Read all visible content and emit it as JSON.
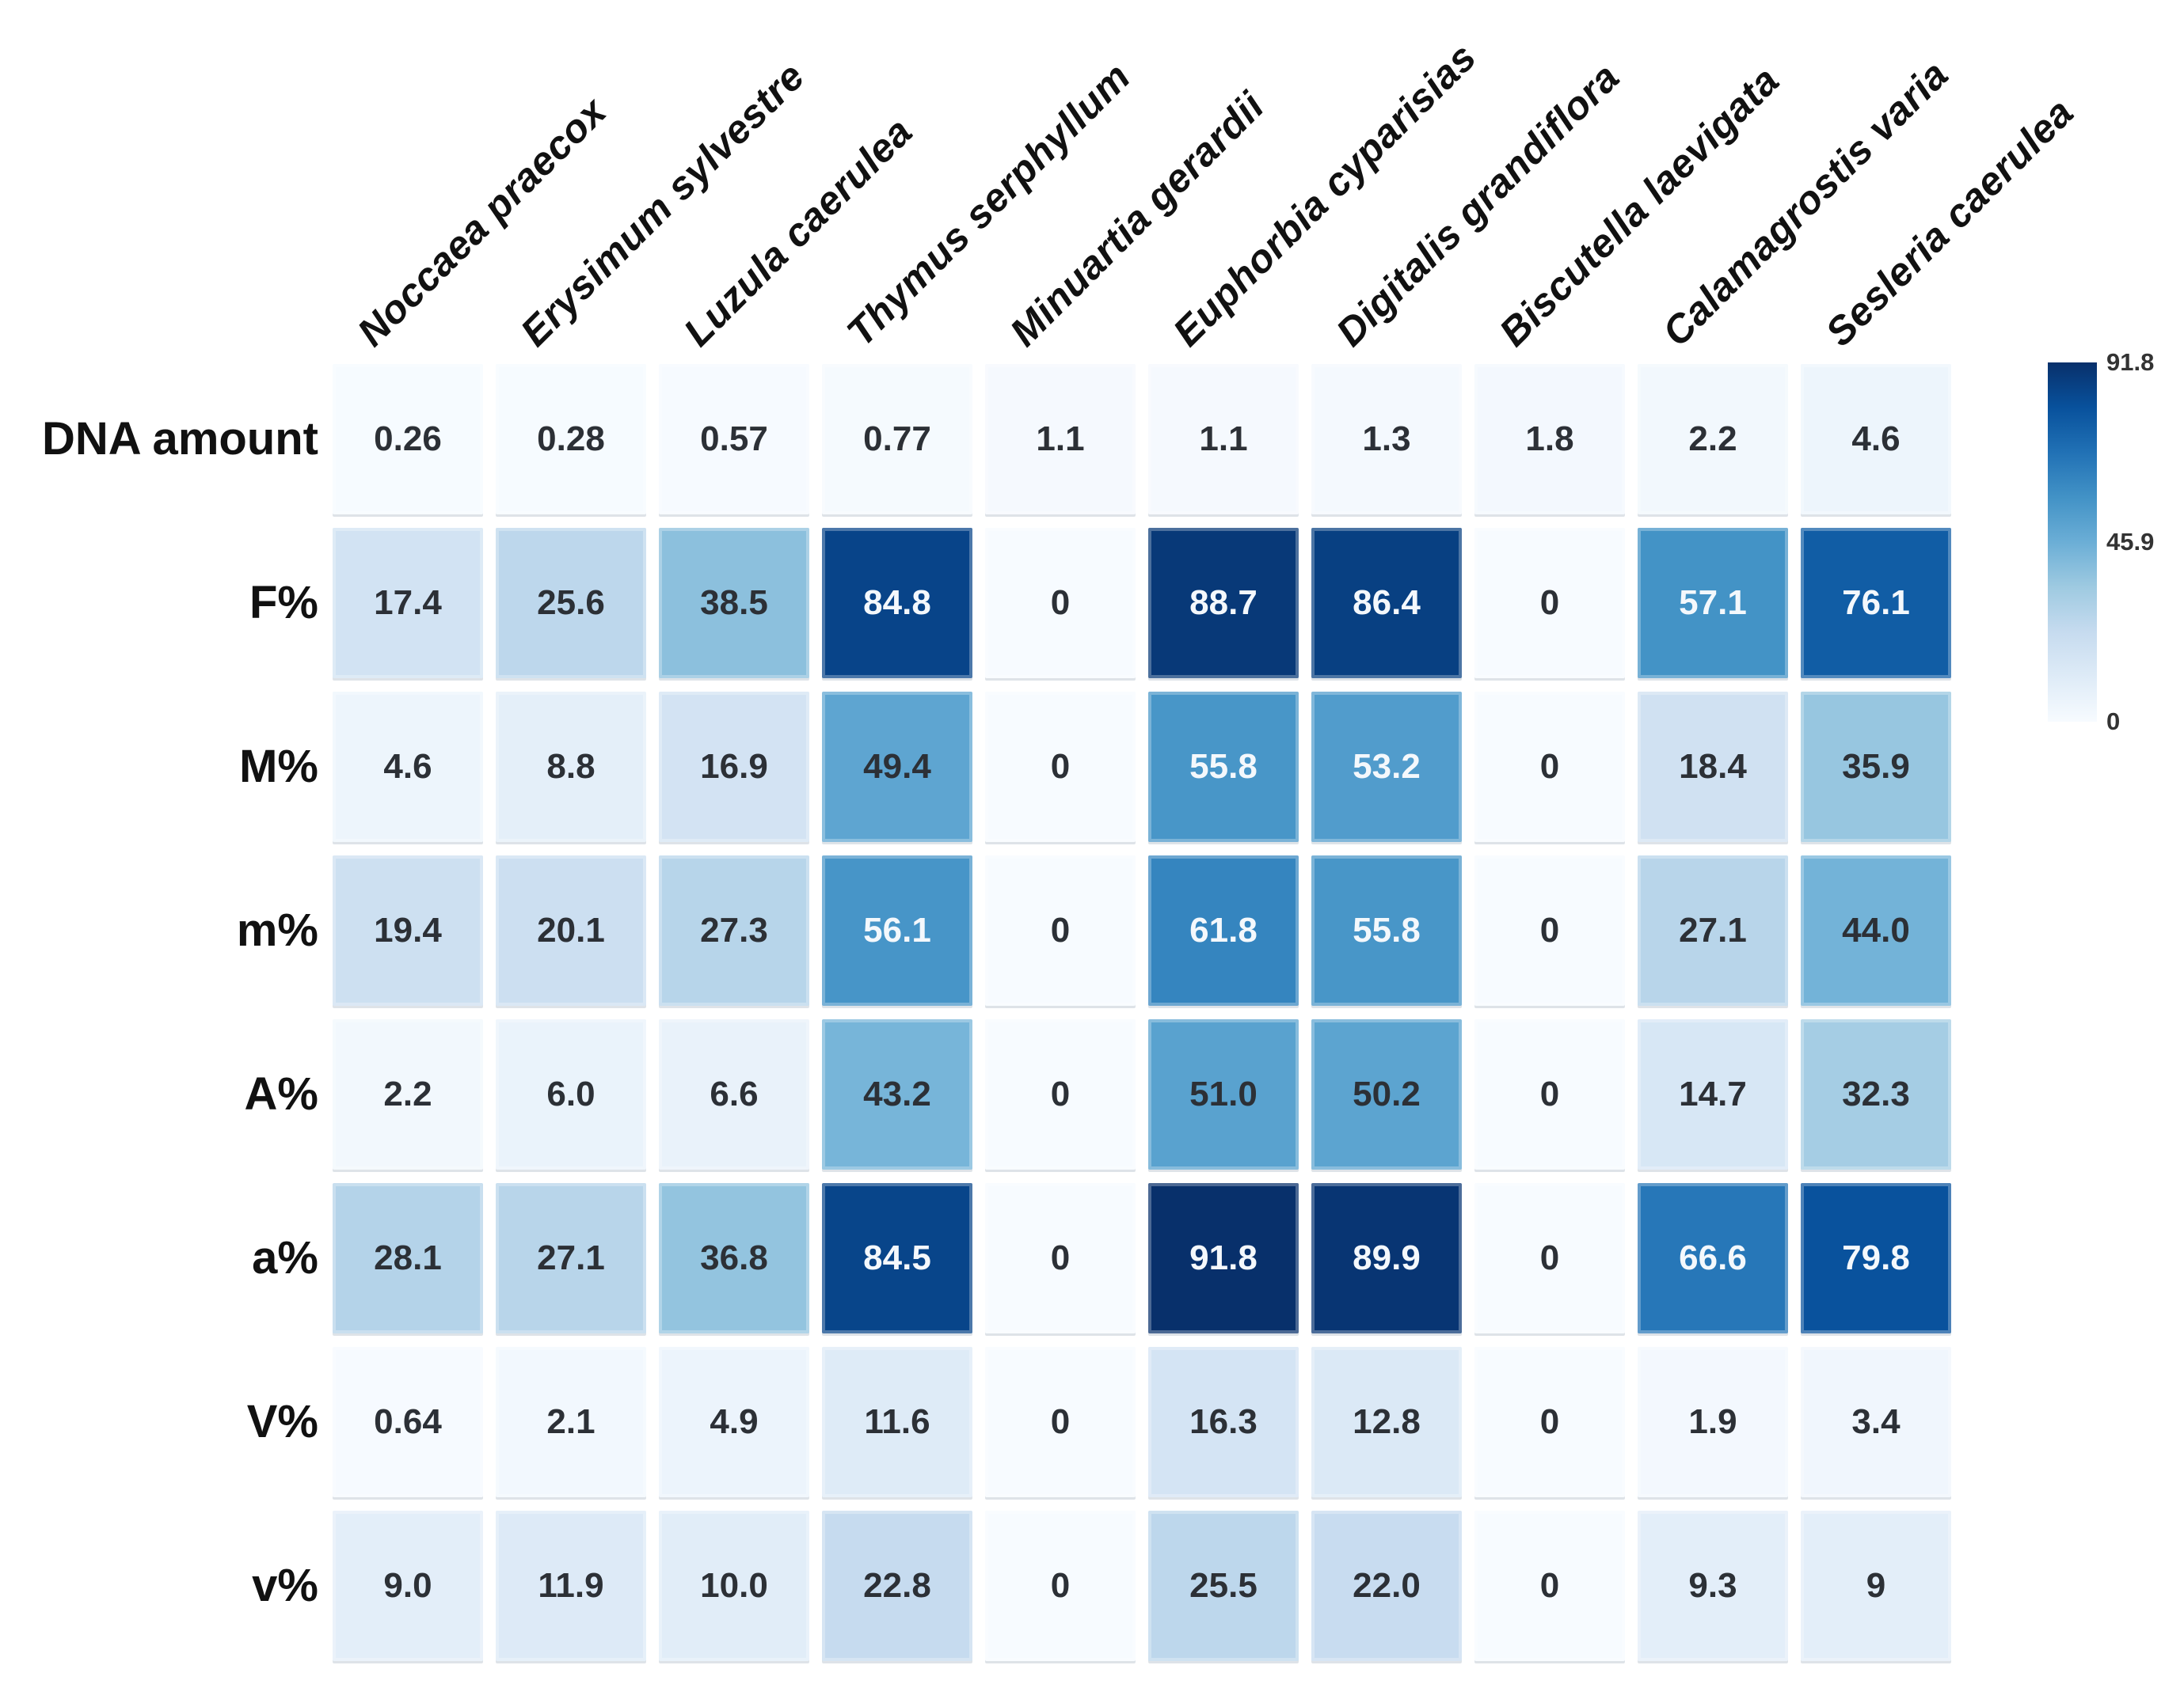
{
  "chart_data": {
    "type": "heatmap",
    "columns": [
      "Noccaea praecox",
      "Erysimum sylvestre",
      "Luzula caerulea",
      "Thymus serphyllum",
      "Minuartia gerardii",
      "Euphorbia cyparisias",
      "Digitalis grandiflora",
      "Biscutella laevigata",
      "Calamagrostis varia",
      "Sesleria caerulea"
    ],
    "rows": [
      {
        "label": "DNA amount",
        "values": [
          "0.26",
          "0.28",
          "0.57",
          "0.77",
          "1.1",
          "1.1",
          "1.3",
          "1.8",
          "2.2",
          "4.6"
        ]
      },
      {
        "label": "F%",
        "values": [
          "17.4",
          "25.6",
          "38.5",
          "84.8",
          "0",
          "88.7",
          "86.4",
          "0",
          "57.1",
          "76.1"
        ]
      },
      {
        "label": "M%",
        "values": [
          "4.6",
          "8.8",
          "16.9",
          "49.4",
          "0",
          "55.8",
          "53.2",
          "0",
          "18.4",
          "35.9"
        ]
      },
      {
        "label": "m%",
        "values": [
          "19.4",
          "20.1",
          "27.3",
          "56.1",
          "0",
          "61.8",
          "55.8",
          "0",
          "27.1",
          "44.0"
        ]
      },
      {
        "label": "A%",
        "values": [
          "2.2",
          "6.0",
          "6.6",
          "43.2",
          "0",
          "51.0",
          "50.2",
          "0",
          "14.7",
          "32.3"
        ]
      },
      {
        "label": "a%",
        "values": [
          "28.1",
          "27.1",
          "36.8",
          "84.5",
          "0",
          "91.8",
          "89.9",
          "0",
          "66.6",
          "79.8"
        ]
      },
      {
        "label": "V%",
        "values": [
          "0.64",
          "2.1",
          "4.9",
          "11.6",
          "0",
          "16.3",
          "12.8",
          "0",
          "1.9",
          "3.4"
        ]
      },
      {
        "label": "v%",
        "values": [
          "9.0",
          "11.9",
          "10.0",
          "22.8",
          "0",
          "25.5",
          "22.0",
          "0",
          "9.3",
          "9"
        ]
      }
    ],
    "scale": {
      "min": 0,
      "max": 91.8
    },
    "legend": {
      "position": "right",
      "ticks": [
        "91.8",
        "45.9",
        "0"
      ]
    },
    "colormap": {
      "name": "Blues",
      "stops": [
        "#f7fbff",
        "#deebf7",
        "#c6dbef",
        "#9ecae1",
        "#6baed6",
        "#4292c6",
        "#2171b5",
        "#08519c",
        "#08306b"
      ]
    },
    "cell_text_dark": "#2c3036",
    "cell_text_light": "#f4f8fc",
    "white_text_threshold": 52,
    "grid": false,
    "title": "",
    "xlabel": "",
    "ylabel": ""
  }
}
